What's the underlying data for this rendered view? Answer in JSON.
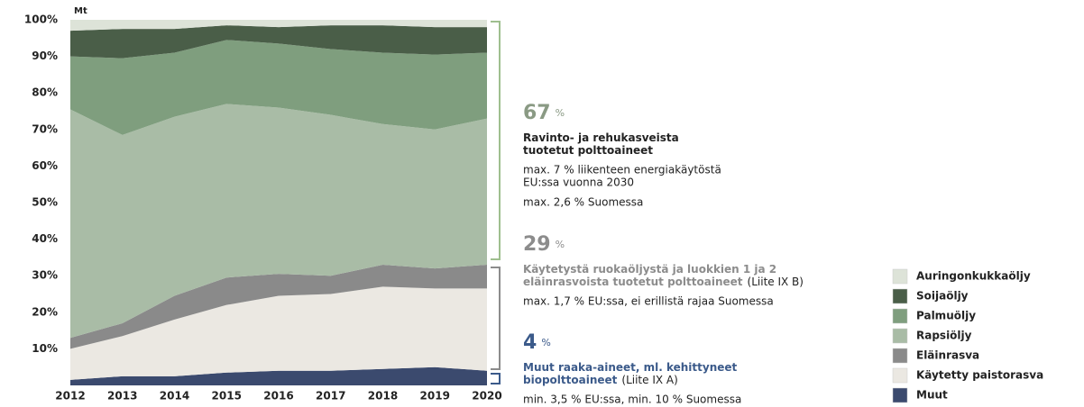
{
  "chart_data": {
    "type": "stacked_area",
    "y_label": "Mt",
    "categories": [
      "2012",
      "2013",
      "2014",
      "2015",
      "2016",
      "2017",
      "2018",
      "2019",
      "2020"
    ],
    "ylim": [
      0,
      100
    ],
    "yticks": [
      {
        "value": 10,
        "label": "10%"
      },
      {
        "value": 20,
        "label": "20%"
      },
      {
        "value": 30,
        "label": "30%"
      },
      {
        "value": 40,
        "label": "40%"
      },
      {
        "value": 50,
        "label": "50%"
      },
      {
        "value": 60,
        "label": "60%"
      },
      {
        "value": 70,
        "label": "70%"
      },
      {
        "value": 80,
        "label": "80%"
      },
      {
        "value": 90,
        "label": "90%"
      },
      {
        "value": 100,
        "label": "100%"
      }
    ],
    "series": [
      {
        "name": "Muut",
        "color": "#3b4a6e",
        "values": [
          1.5,
          2.5,
          2.5,
          3.5,
          4,
          4,
          4.5,
          5,
          4
        ]
      },
      {
        "name": "Käytetty paistorasva",
        "color": "#ebe8e2",
        "values": [
          8.5,
          11,
          15.5,
          18.5,
          20.5,
          21,
          22.5,
          21.5,
          22.5
        ]
      },
      {
        "name": "Eläinrasva",
        "color": "#8a8a8a",
        "values": [
          3,
          3.5,
          6.5,
          7.5,
          6,
          5,
          6,
          5.5,
          6.5
        ]
      },
      {
        "name": "Rapsiöljy",
        "color": "#a9bca6",
        "values": [
          62.5,
          51.5,
          49,
          47.5,
          45.5,
          44,
          38.5,
          38,
          40
        ]
      },
      {
        "name": "Palmuöljy",
        "color": "#7f9e7e",
        "values": [
          14.5,
          21,
          17.5,
          17.5,
          17.5,
          18,
          19.5,
          20.5,
          18
        ]
      },
      {
        "name": "Soijaöljy",
        "color": "#4a5e48",
        "values": [
          7,
          8,
          6.5,
          4,
          4.5,
          6.5,
          7.5,
          7.5,
          7
        ]
      },
      {
        "name": "Auringonkukkaöljy",
        "color": "#dde3d8",
        "values": [
          3,
          2.5,
          2.5,
          1.5,
          2,
          1.5,
          1.5,
          2,
          2
        ]
      }
    ],
    "annotations": [
      {
        "value": "67",
        "unit": "%",
        "title_lines": [
          "Ravinto- ja rehukasveista",
          "tuotetut polttoaineet"
        ],
        "notes": [
          "max. 7 % liikenteen energiakäytöstä",
          "EU:ssa vuonna 2030",
          "max. 2,6 % Suomessa"
        ]
      },
      {
        "value": "29",
        "unit": "%",
        "title_lines": [
          "Käytetystä ruokaöljystä ja luokkien 1 ja 2",
          "eläinrasvoista tuotetut polttoaineet"
        ],
        "title_note": "(Liite IX B)",
        "notes": [
          "max. 1,7 % EU:ssa, ei erillistä rajaa Suomessa"
        ]
      },
      {
        "value": "4",
        "unit": "%",
        "title_lines": [
          "Muut raaka-aineet, ml. kehittyneet",
          "biopolttoaineet"
        ],
        "title_note": "(Liite IX A)",
        "notes": [
          "min. 3,5 % EU:ssa, min. 10 % Suomessa"
        ]
      }
    ]
  }
}
